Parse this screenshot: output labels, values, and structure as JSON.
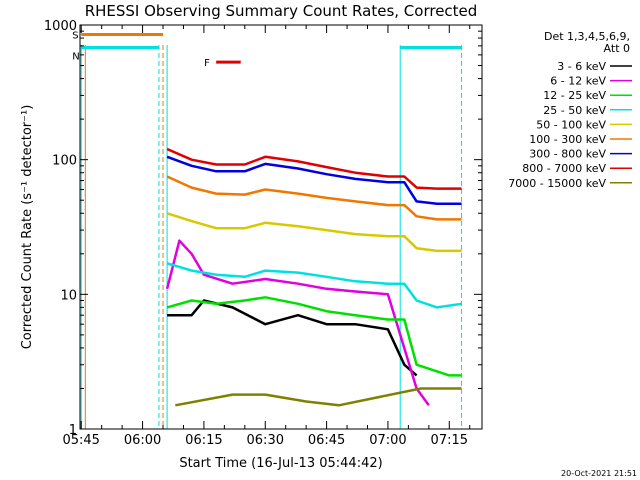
{
  "title": "RHESSI Observing Summary Count Rates, Corrected",
  "xlabel": "Start Time (16-Jul-13 05:44:42)",
  "ylabel": "Corrected Count Rate (s⁻¹ detector⁻¹)",
  "timestamp": "20-Oct-2021 21:51",
  "detectors": {
    "line1": "Det 1,3,4,5,6,9,",
    "line2": "Att 0"
  },
  "chart_data": {
    "type": "line",
    "title": "RHESSI Observing Summary Count Rates, Corrected",
    "xlabel": "Start Time (16-Jul-13 05:44:42)",
    "ylabel": "Corrected Count Rate (s⁻¹ detector⁻¹)",
    "x_ticks": [
      "05:45",
      "06:00",
      "06:15",
      "06:30",
      "06:45",
      "07:00",
      "07:15"
    ],
    "y_ticks": [
      "1",
      "10",
      "100",
      "1000"
    ],
    "y_scale": "log",
    "ylim": [
      1,
      1000
    ],
    "xlim": [
      "05:44:42",
      "07:23:00"
    ],
    "flags": {
      "S": {
        "color": "#f07800",
        "start": "05:45",
        "end": "06:05",
        "level": 850
      },
      "N": {
        "color": "#00e0e0",
        "start": "05:45",
        "end": "06:04",
        "level": 680
      },
      "N2": {
        "color": "#00e0e0",
        "start": "07:03",
        "end": "07:18",
        "level": 680
      },
      "F": {
        "color": "#e00000",
        "start": "06:18",
        "end": "06:24",
        "level": 530
      }
    },
    "vlines": [
      {
        "color": "#f07800",
        "style": "solid",
        "time": "05:46"
      },
      {
        "color": "#00e0e0",
        "style": "solid",
        "time": "05:45"
      },
      {
        "color": "#00e0e0",
        "style": "dashed",
        "time": "06:04"
      },
      {
        "color": "#f07800",
        "style": "dashed",
        "time": "06:05"
      },
      {
        "color": "#00e0e0",
        "style": "solid",
        "time": "06:06"
      },
      {
        "color": "#00e0e0",
        "style": "solid",
        "time": "07:03"
      },
      {
        "color": "#00e0e0",
        "style": "dashed",
        "time": "07:18"
      }
    ],
    "series": [
      {
        "name": "3 - 6 keV",
        "color": "#000000",
        "times": [
          "06:06",
          "06:12",
          "06:15",
          "06:22",
          "06:30",
          "06:38",
          "06:45",
          "06:52",
          "07:00",
          "07:04",
          "07:07"
        ],
        "values": [
          7,
          7,
          9,
          8,
          6,
          7,
          6,
          6,
          5.5,
          3,
          2.5
        ]
      },
      {
        "name": "6 - 12 keV",
        "color": "#e000e0",
        "times": [
          "06:06",
          "06:09",
          "06:12",
          "06:15",
          "06:22",
          "06:30",
          "06:38",
          "06:45",
          "06:52",
          "07:00",
          "07:07",
          "07:10"
        ],
        "values": [
          11,
          25,
          20,
          14,
          12,
          13,
          12,
          11,
          10.5,
          10,
          2,
          1.5
        ]
      },
      {
        "name": "12 - 25 keV",
        "color": "#00e000",
        "times": [
          "06:06",
          "06:12",
          "06:18",
          "06:25",
          "06:30",
          "06:38",
          "06:45",
          "06:52",
          "07:00",
          "07:04",
          "07:07",
          "07:15",
          "07:18"
        ],
        "values": [
          8,
          9,
          8.5,
          9,
          9.5,
          8.5,
          7.5,
          7,
          6.5,
          6.5,
          3,
          2.5,
          2.5
        ]
      },
      {
        "name": "25 - 50 keV",
        "color": "#00e0e0",
        "times": [
          "06:06",
          "06:12",
          "06:18",
          "06:25",
          "06:30",
          "06:38",
          "06:45",
          "06:52",
          "07:00",
          "07:04",
          "07:07",
          "07:12",
          "07:18"
        ],
        "values": [
          17,
          15,
          14,
          13.5,
          15,
          14.5,
          13.5,
          12.5,
          12,
          12,
          9,
          8,
          8.5
        ]
      },
      {
        "name": "50 - 100 keV",
        "color": "#d8c800",
        "times": [
          "06:06",
          "06:12",
          "06:18",
          "06:25",
          "06:30",
          "06:38",
          "06:45",
          "06:52",
          "07:00",
          "07:04",
          "07:07",
          "07:12",
          "07:18"
        ],
        "values": [
          40,
          35,
          31,
          31,
          34,
          32,
          30,
          28,
          27,
          27,
          22,
          21,
          21
        ]
      },
      {
        "name": "100 - 300 keV",
        "color": "#f07800",
        "times": [
          "06:06",
          "06:12",
          "06:18",
          "06:25",
          "06:30",
          "06:38",
          "06:45",
          "06:52",
          "07:00",
          "07:04",
          "07:07",
          "07:12",
          "07:18"
        ],
        "values": [
          75,
          62,
          56,
          55,
          60,
          56,
          52,
          49,
          46,
          46,
          38,
          36,
          36
        ]
      },
      {
        "name": "300 - 800 keV",
        "color": "#0000e0",
        "times": [
          "06:06",
          "06:12",
          "06:18",
          "06:25",
          "06:30",
          "06:38",
          "06:45",
          "06:52",
          "07:00",
          "07:04",
          "07:07",
          "07:12",
          "07:18"
        ],
        "values": [
          105,
          90,
          82,
          82,
          93,
          86,
          78,
          72,
          68,
          68,
          49,
          47,
          47
        ]
      },
      {
        "name": "800 - 7000 keV",
        "color": "#e00000",
        "times": [
          "06:06",
          "06:12",
          "06:18",
          "06:25",
          "06:30",
          "06:38",
          "06:45",
          "06:52",
          "07:00",
          "07:04",
          "07:07",
          "07:12",
          "07:18"
        ],
        "values": [
          120,
          100,
          92,
          92,
          105,
          97,
          88,
          80,
          75,
          75,
          62,
          61,
          61
        ]
      },
      {
        "name": "7000 - 15000 keV",
        "color": "#808000",
        "times": [
          "06:08",
          "06:22",
          "06:30",
          "06:40",
          "06:48",
          "07:08",
          "07:18"
        ],
        "values": [
          1.5,
          1.8,
          1.8,
          1.6,
          1.5,
          2.0,
          2.0
        ]
      }
    ]
  }
}
